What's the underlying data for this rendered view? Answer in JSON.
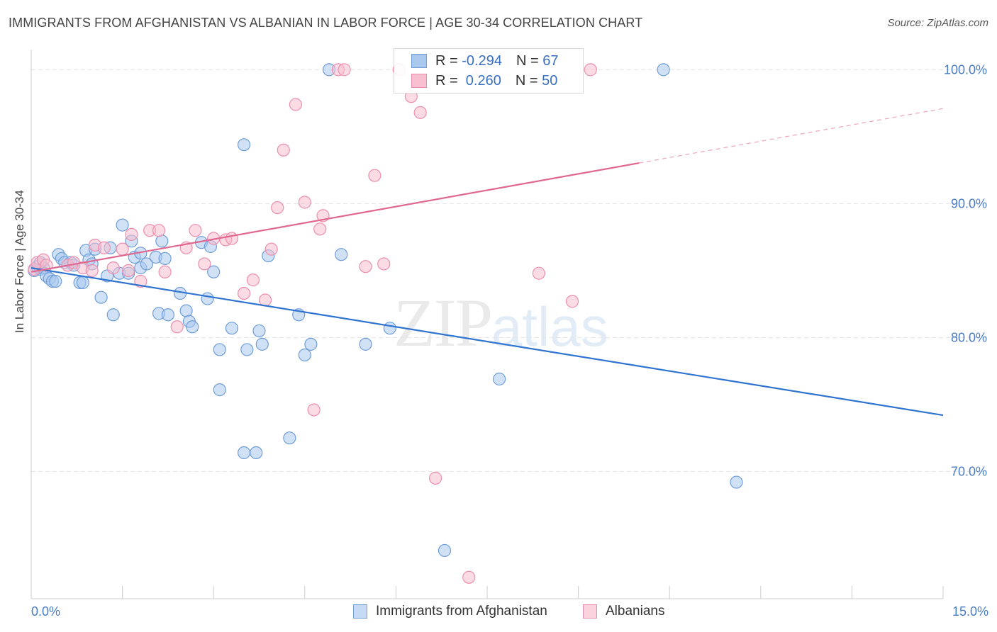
{
  "title": "IMMIGRANTS FROM AFGHANISTAN VS ALBANIAN IN LABOR FORCE | AGE 30-34 CORRELATION CHART",
  "source": "Source: ZipAtlas.com",
  "watermark": {
    "zip": "ZIP",
    "atlas": "atlas"
  },
  "legend": {
    "rows": [
      {
        "r_label": "R =",
        "r_value": "-0.294",
        "n_label": "N =",
        "n_value": "67"
      },
      {
        "r_label": "R =",
        "r_value": " 0.260",
        "n_label": "N =",
        "n_value": "50"
      }
    ]
  },
  "bottom_legend": [
    "Immigrants from Afghanistan",
    "Albanians"
  ],
  "colors": {
    "blue_fill": "#aac8ee",
    "blue_stroke": "#6f9ed8",
    "blue_line": "#2f74d0",
    "pink_fill": "#f7bfd0",
    "pink_stroke": "#ec8fae",
    "pink_line": "#e06890",
    "grid": "#e3e3e3",
    "tick_text": "#4a7cc5"
  },
  "chart_data": {
    "type": "scatter",
    "title": "IMMIGRANTS FROM AFGHANISTAN VS ALBANIAN IN LABOR FORCE | AGE 30-34 CORRELATION CHART",
    "xlabel": "",
    "ylabel": "In Labor Force | Age 30-34",
    "xlim": [
      0,
      15
    ],
    "ylim": [
      60.5,
      101.5
    ],
    "x_tick_labels": [
      "0.0%",
      "15.0%"
    ],
    "y_ticks": [
      70,
      80,
      90,
      100
    ],
    "y_tick_labels": [
      "70.0%",
      "80.0%",
      "90.0%",
      "100.0%"
    ],
    "grid": true,
    "legend_position": "top-center",
    "series": [
      {
        "name": "Immigrants from Afghanistan",
        "r": -0.294,
        "n": 67,
        "trend": {
          "x": [
            0,
            15
          ],
          "y": [
            85.2,
            74.2
          ],
          "dashed_from_x": null
        },
        "points": [
          [
            0.05,
            85.0
          ],
          [
            0.1,
            85.3
          ],
          [
            0.15,
            85.1
          ],
          [
            0.2,
            85.2
          ],
          [
            0.25,
            84.6
          ],
          [
            0.3,
            84.4
          ],
          [
            0.35,
            84.2
          ],
          [
            0.45,
            86.2
          ],
          [
            0.5,
            85.9
          ],
          [
            0.55,
            85.6
          ],
          [
            0.65,
            85.6
          ],
          [
            0.7,
            85.4
          ],
          [
            0.8,
            84.1
          ],
          [
            0.85,
            84.1
          ],
          [
            0.9,
            86.5
          ],
          [
            0.95,
            85.8
          ],
          [
            1.05,
            86.6
          ],
          [
            1.15,
            83.0
          ],
          [
            1.25,
            84.6
          ],
          [
            1.3,
            86.7
          ],
          [
            1.35,
            81.7
          ],
          [
            1.45,
            84.8
          ],
          [
            1.5,
            88.4
          ],
          [
            1.6,
            84.8
          ],
          [
            1.65,
            87.2
          ],
          [
            1.7,
            86.0
          ],
          [
            1.8,
            86.3
          ],
          [
            1.8,
            85.2
          ],
          [
            1.9,
            85.5
          ],
          [
            2.05,
            86.0
          ],
          [
            2.1,
            81.8
          ],
          [
            2.15,
            87.2
          ],
          [
            2.25,
            81.7
          ],
          [
            2.45,
            83.3
          ],
          [
            2.55,
            82.0
          ],
          [
            2.6,
            81.2
          ],
          [
            2.65,
            80.8
          ],
          [
            2.8,
            87.1
          ],
          [
            2.9,
            82.9
          ],
          [
            2.95,
            86.8
          ],
          [
            3.0,
            84.9
          ],
          [
            3.1,
            79.1
          ],
          [
            3.1,
            76.1
          ],
          [
            3.3,
            80.7
          ],
          [
            3.5,
            71.4
          ],
          [
            3.5,
            94.4
          ],
          [
            3.55,
            79.1
          ],
          [
            3.7,
            71.4
          ],
          [
            3.75,
            80.5
          ],
          [
            3.8,
            79.5
          ],
          [
            3.9,
            86.1
          ],
          [
            4.25,
            72.5
          ],
          [
            4.4,
            81.7
          ],
          [
            4.5,
            78.7
          ],
          [
            4.6,
            79.5
          ],
          [
            4.9,
            100.0
          ],
          [
            5.1,
            86.2
          ],
          [
            5.5,
            79.5
          ],
          [
            5.9,
            80.7
          ],
          [
            7.7,
            76.9
          ],
          [
            10.4,
            100.0
          ],
          [
            11.6,
            69.2
          ],
          [
            6.8,
            64.1
          ],
          [
            0.15,
            85.6
          ],
          [
            0.4,
            84.2
          ],
          [
            1.0,
            85.5
          ],
          [
            2.2,
            85.9
          ]
        ]
      },
      {
        "name": "Albanians",
        "r": 0.26,
        "n": 50,
        "trend": {
          "x": [
            0,
            15
          ],
          "y": [
            84.9,
            97.1
          ],
          "dashed_from_x": 10.0
        },
        "points": [
          [
            0.05,
            85.1
          ],
          [
            0.1,
            85.6
          ],
          [
            0.2,
            85.8
          ],
          [
            0.25,
            85.4
          ],
          [
            0.6,
            85.4
          ],
          [
            0.7,
            85.6
          ],
          [
            0.85,
            85.2
          ],
          [
            1.0,
            85.0
          ],
          [
            1.05,
            86.9
          ],
          [
            1.2,
            86.7
          ],
          [
            1.35,
            85.2
          ],
          [
            1.5,
            86.6
          ],
          [
            1.6,
            85.0
          ],
          [
            1.65,
            87.7
          ],
          [
            1.8,
            84.2
          ],
          [
            1.95,
            88.0
          ],
          [
            2.1,
            88.0
          ],
          [
            2.2,
            84.9
          ],
          [
            2.4,
            80.8
          ],
          [
            2.55,
            86.7
          ],
          [
            2.7,
            88.0
          ],
          [
            2.85,
            85.5
          ],
          [
            3.0,
            87.4
          ],
          [
            3.2,
            87.3
          ],
          [
            3.3,
            87.4
          ],
          [
            3.5,
            83.3
          ],
          [
            3.65,
            84.3
          ],
          [
            3.85,
            82.8
          ],
          [
            3.95,
            86.6
          ],
          [
            4.05,
            89.7
          ],
          [
            4.15,
            94.0
          ],
          [
            4.35,
            97.4
          ],
          [
            4.5,
            90.1
          ],
          [
            4.65,
            74.6
          ],
          [
            4.75,
            88.1
          ],
          [
            4.8,
            89.1
          ],
          [
            5.05,
            100.0
          ],
          [
            5.15,
            100.0
          ],
          [
            5.5,
            85.3
          ],
          [
            5.65,
            92.1
          ],
          [
            5.8,
            85.5
          ],
          [
            6.05,
            100.0
          ],
          [
            6.25,
            98.0
          ],
          [
            6.4,
            96.8
          ],
          [
            6.65,
            69.5
          ],
          [
            7.2,
            62.1
          ],
          [
            7.4,
            100.0
          ],
          [
            8.35,
            84.8
          ],
          [
            8.9,
            82.7
          ],
          [
            9.2,
            100.0
          ]
        ]
      }
    ]
  }
}
